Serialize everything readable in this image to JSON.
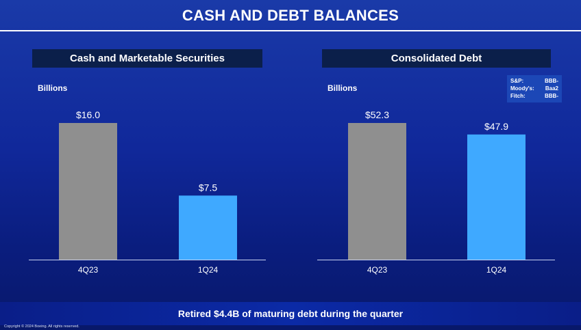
{
  "title": "CASH AND DEBT BALANCES",
  "footer": "Retired $4.4B of maturing debt during the quarter",
  "copyright": "Copyright © 2024 Boeing. All rights reserved.",
  "colors": {
    "bar_4Q23": "#8f8f8f",
    "bar_1Q24": "#3fa9ff",
    "header_bg": "#0b1f4a"
  },
  "ratings": [
    {
      "agency": "S&P:",
      "rating": "BBB-"
    },
    {
      "agency": "Moody's:",
      "rating": "Baa2"
    },
    {
      "agency": "Fitch:",
      "rating": "BBB-"
    }
  ],
  "chart_data": [
    {
      "type": "bar",
      "title": "Cash and Marketable Securities",
      "ylabel": "Billions",
      "categories": [
        "4Q23",
        "1Q24"
      ],
      "values": [
        16.0,
        7.5
      ],
      "labels": [
        "$16.0",
        "$7.5"
      ],
      "ylim": [
        0,
        16.0
      ]
    },
    {
      "type": "bar",
      "title": "Consolidated Debt",
      "ylabel": "Billions",
      "categories": [
        "4Q23",
        "1Q24"
      ],
      "values": [
        52.3,
        47.9
      ],
      "labels": [
        "$52.3",
        "$47.9"
      ],
      "ylim": [
        0,
        52.3
      ]
    }
  ]
}
